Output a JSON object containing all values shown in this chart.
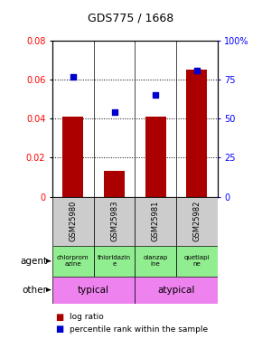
{
  "title": "GDS775 / 1668",
  "samples": [
    "GSM25980",
    "GSM25983",
    "GSM25981",
    "GSM25982"
  ],
  "log_ratio": [
    0.041,
    0.013,
    0.041,
    0.065
  ],
  "percentile_rank_pct": [
    77,
    54,
    65,
    81
  ],
  "agent_labels": [
    "chlorprom\nazine",
    "thioridazin\ne",
    "olanzap\nine",
    "quetiapi\nne"
  ],
  "agent_col_colors": [
    "#90EE90",
    "#90EE90",
    "#90EE90",
    "#90EE90"
  ],
  "bar_color": "#AA0000",
  "dot_color": "#0000CC",
  "ylim_left": [
    0,
    0.08
  ],
  "ylim_right": [
    0,
    100
  ],
  "yticks_left": [
    0,
    0.02,
    0.04,
    0.06,
    0.08
  ],
  "yticks_right": [
    0,
    25,
    50,
    75,
    100
  ],
  "ytick_labels_left": [
    "0",
    "0.02",
    "0.04",
    "0.06",
    "0.08"
  ],
  "ytick_labels_right": [
    "0",
    "25",
    "50",
    "75",
    "100%"
  ],
  "legend_red": "log ratio",
  "legend_blue": "percentile rank within the sample",
  "agent_row_label": "agent",
  "other_row_label": "other",
  "sample_bg_color": "#CCCCCC",
  "typical_color": "#EE82EE",
  "atypical_color": "#EE82EE"
}
